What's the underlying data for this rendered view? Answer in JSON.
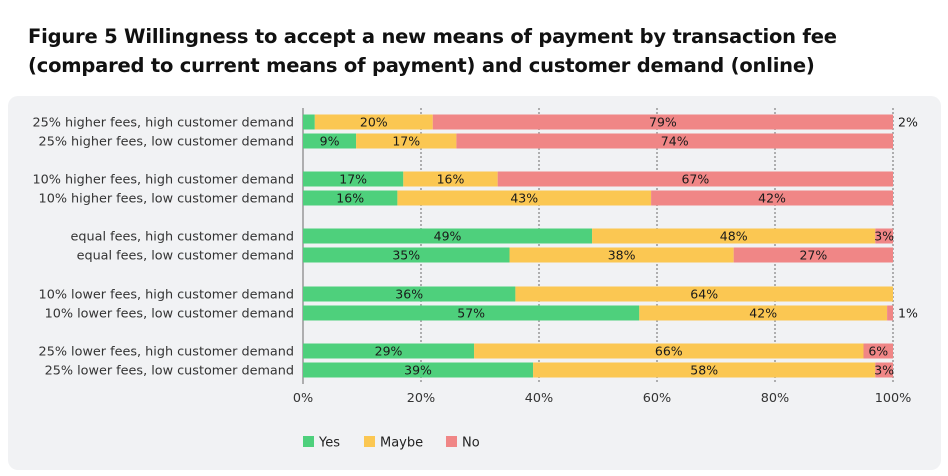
{
  "title": "Figure 5  Willingness to accept a new means of payment by transaction fee (compared to current means of payment) and customer demand (online)",
  "chart_data": {
    "type": "bar",
    "orientation": "horizontal",
    "stacked": true,
    "categories": [
      "25% higher fees, high customer demand",
      "25% higher fees, low customer demand",
      "10% higher fees, high customer demand",
      "10% higher fees, low customer demand",
      "equal fees, high customer demand",
      "equal fees, low customer demand",
      "10% lower fees, high customer demand",
      "10% lower fees, low customer demand",
      "25% lower fees, high customer demand",
      "25% lower fees, low customer demand"
    ],
    "series": [
      {
        "name": "Yes",
        "color": "#4ed07c",
        "values": [
          2,
          9,
          17,
          16,
          49,
          35,
          36,
          57,
          29,
          39
        ]
      },
      {
        "name": "Maybe",
        "color": "#fbc752",
        "values": [
          20,
          17,
          16,
          43,
          48,
          38,
          64,
          42,
          66,
          58
        ]
      },
      {
        "name": "No",
        "color": "#f08686",
        "values": [
          79,
          74,
          67,
          42,
          3,
          27,
          0,
          1,
          6,
          3
        ]
      }
    ],
    "value_labels": [
      [
        "2%",
        "20%",
        "79%"
      ],
      [
        "9%",
        "17%",
        "74%"
      ],
      [
        "17%",
        "16%",
        "67%"
      ],
      [
        "16%",
        "43%",
        "42%"
      ],
      [
        "49%",
        "48%",
        "3%"
      ],
      [
        "35%",
        "38%",
        "27%"
      ],
      [
        "36%",
        "64%",
        ""
      ],
      [
        "57%",
        "42%",
        "1%"
      ],
      [
        "29%",
        "66%",
        "6%"
      ],
      [
        "39%",
        "58%",
        "3%"
      ]
    ],
    "x_ticks": [
      "0%",
      "20%",
      "40%",
      "60%",
      "80%",
      "100%"
    ],
    "xlim": [
      0,
      100
    ],
    "grid": "vertical dashed",
    "legend_position": "bottom"
  }
}
